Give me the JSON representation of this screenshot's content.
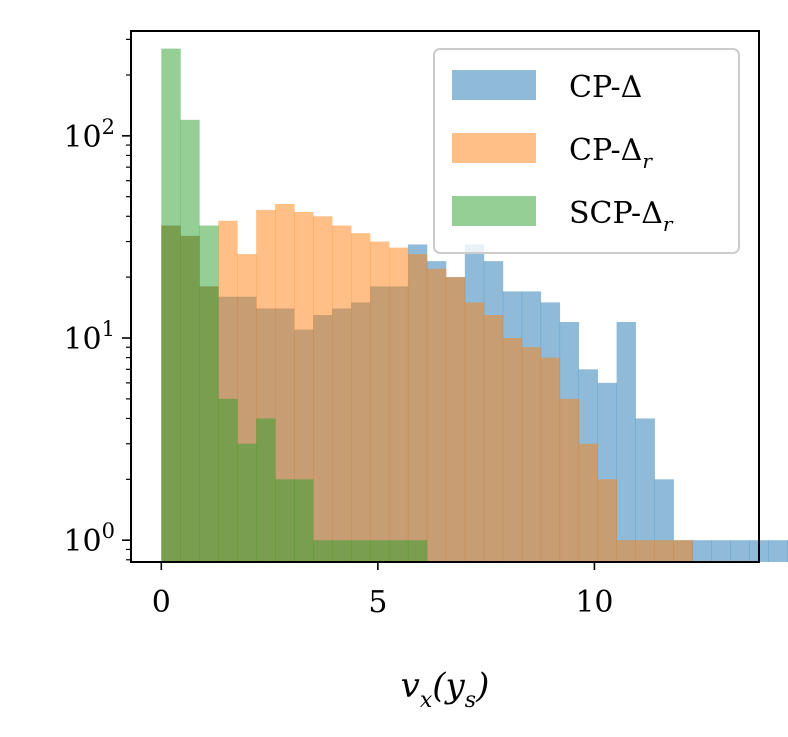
{
  "chart_data": {
    "type": "bar",
    "title": "",
    "xlabel": "v_x(y_s)",
    "ylabel": "",
    "yscale": "log",
    "xlim": [
      -0.7,
      13.8
    ],
    "ylim": [
      0.78,
      330
    ],
    "x_ticks": [
      0,
      5,
      10
    ],
    "y_ticks": [
      {
        "value": 1,
        "base": "10",
        "exp": "0"
      },
      {
        "value": 10,
        "base": "10",
        "exp": "1"
      },
      {
        "value": 100,
        "base": "10",
        "exp": "2"
      }
    ],
    "grid": false,
    "legend_position": "top-right",
    "series": [
      {
        "name": "CP-Δ",
        "color": "#1f77b4",
        "opacity": 0.5,
        "bin_start": 0.0,
        "bin_width": 0.438,
        "values": [
          36,
          32,
          18,
          16,
          16,
          14,
          14,
          11,
          13,
          14,
          15,
          18,
          18,
          29,
          24,
          20,
          29,
          24,
          17,
          17,
          15,
          12,
          7,
          6,
          12,
          4,
          2,
          1,
          1,
          1,
          1,
          1,
          1,
          1,
          1,
          1,
          0,
          0,
          0,
          0,
          0,
          0,
          0,
          0,
          0,
          0,
          0,
          0,
          0,
          0
        ]
      },
      {
        "name": "CP-Δ_r",
        "color": "#ff7f0e",
        "opacity": 0.5,
        "bin_start": 0.0,
        "bin_width": 0.438,
        "values": [
          36,
          32,
          18,
          38,
          26,
          43,
          46,
          42,
          40,
          36,
          33,
          30,
          28,
          26,
          22,
          20,
          15,
          13,
          10,
          9,
          8,
          5,
          3,
          2,
          1,
          1,
          1,
          1,
          0,
          0,
          0,
          0,
          0,
          0,
          0,
          0,
          0,
          0,
          0,
          0,
          0,
          0,
          0,
          0,
          0,
          0,
          0,
          0,
          0,
          0
        ]
      },
      {
        "name": "SCP-Δ_r",
        "color": "#2ca02c",
        "opacity": 0.5,
        "bin_start": 0.0,
        "bin_width": 0.438,
        "values": [
          270,
          120,
          36,
          5,
          3,
          4,
          2,
          2,
          1,
          1,
          1,
          1,
          1,
          1,
          0,
          0,
          0,
          0,
          0,
          0,
          0,
          0,
          0,
          0,
          0,
          0,
          0,
          0,
          0,
          0,
          0,
          0,
          0,
          0,
          0,
          0,
          0,
          0,
          0,
          0,
          0,
          0,
          0,
          0,
          0,
          0,
          0,
          0,
          0,
          0
        ]
      }
    ],
    "legend": [
      {
        "base": "CP-Δ",
        "sub": ""
      },
      {
        "base": "CP-Δ",
        "sub": "r"
      },
      {
        "base": "SCP-Δ",
        "sub": "r"
      }
    ]
  }
}
